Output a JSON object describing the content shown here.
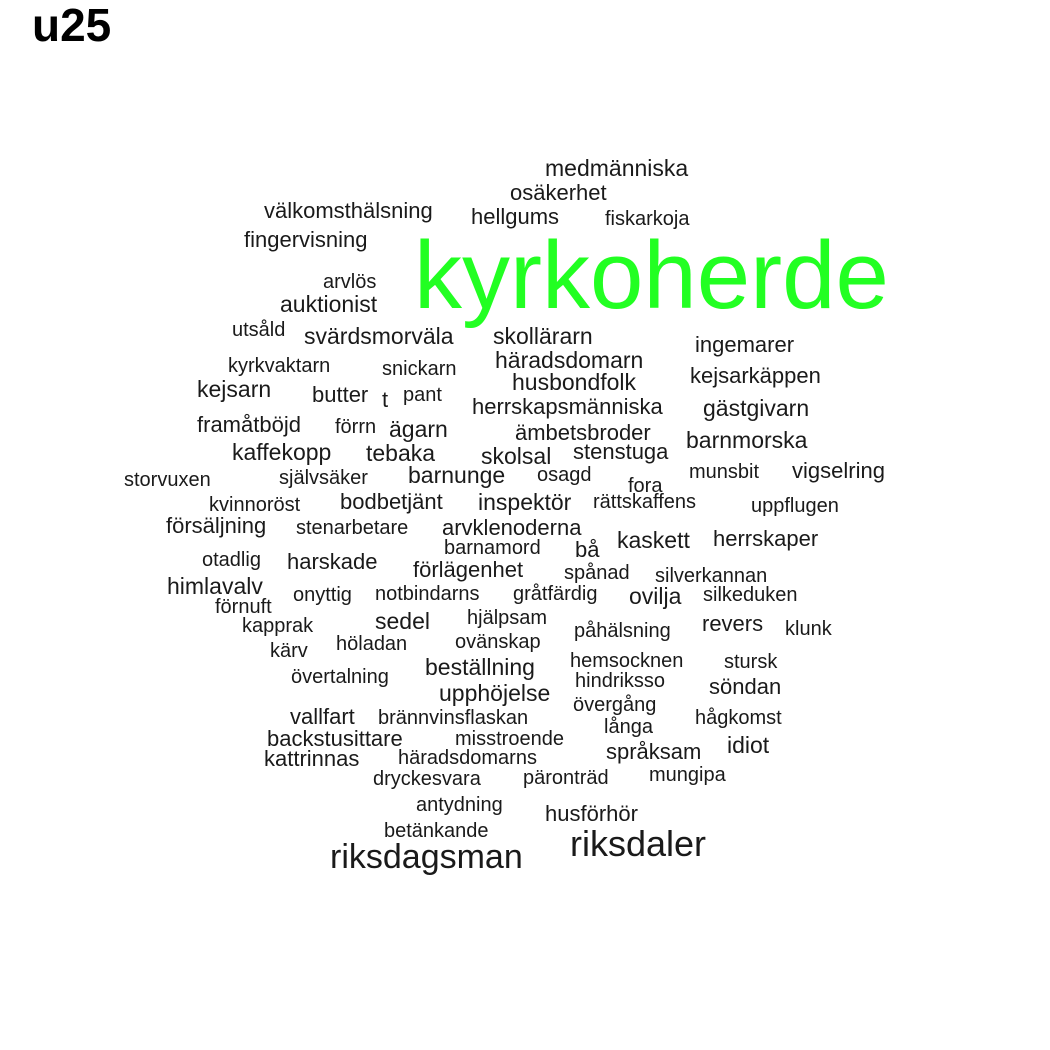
{
  "title": "u25",
  "colors": {
    "highlight": "#22ff22",
    "text": "#1a1a1a",
    "title": "#000000",
    "background": "#ffffff"
  },
  "words": [
    "kyrkoherde",
    "riksdaler",
    "riksdagsman",
    "medmänniska",
    "osäkerhet",
    "välkomsthälsning",
    "hellgums",
    "fiskarkoja",
    "fingervisning",
    "arvlös",
    "auktionist",
    "utsåld",
    "svärdsmorväla",
    "skollärarn",
    "ingemarer",
    "häradsdomarn",
    "kyrkvaktarn",
    "snickarn",
    "husbondfolk",
    "kejsarkäppen",
    "kejsarn",
    "butter",
    "t",
    "pant",
    "herrskapsmänniska",
    "gästgivarn",
    "framåtböjd",
    "förrn",
    "ägarn",
    "ämbetsbroder",
    "barnmorska",
    "kaffekopp",
    "tebaka",
    "skolsal",
    "stenstuga",
    "munsbit",
    "vigselring",
    "storvuxen",
    "självsäker",
    "barnunge",
    "osagd",
    "fora",
    "kvinnoröst",
    "bodbetjänt",
    "inspektör",
    "rättskaffens",
    "uppflugen",
    "försäljning",
    "stenarbetare",
    "arvklenoderna",
    "kaskett",
    "herrskaper",
    "barnamord",
    "bå",
    "otadlig",
    "harskade",
    "förlägenhet",
    "spånad",
    "silverkannan",
    "himlavalv",
    "onyttig",
    "notbindarns",
    "gråtfärdig",
    "ovilja",
    "silkeduken",
    "förnuft",
    "hjälpsam",
    "kapprak",
    "sedel",
    "påhälsning",
    "revers",
    "klunk",
    "höladan",
    "ovänskap",
    "kärv",
    "hemsocknen",
    "stursk",
    "beställning",
    "övertalning",
    "hindriksso",
    "söndan",
    "upphöjelse",
    "övergång",
    "vallfart",
    "brännvinsflaskan",
    "långa",
    "hågkomst",
    "backstusittare",
    "misstroende",
    "idiot",
    "språksam",
    "kattrinnas",
    "häradsdomarns",
    "mungipa",
    "dryckesvara",
    "päronträd",
    "antydning",
    "husförhör",
    "betänkande"
  ]
}
